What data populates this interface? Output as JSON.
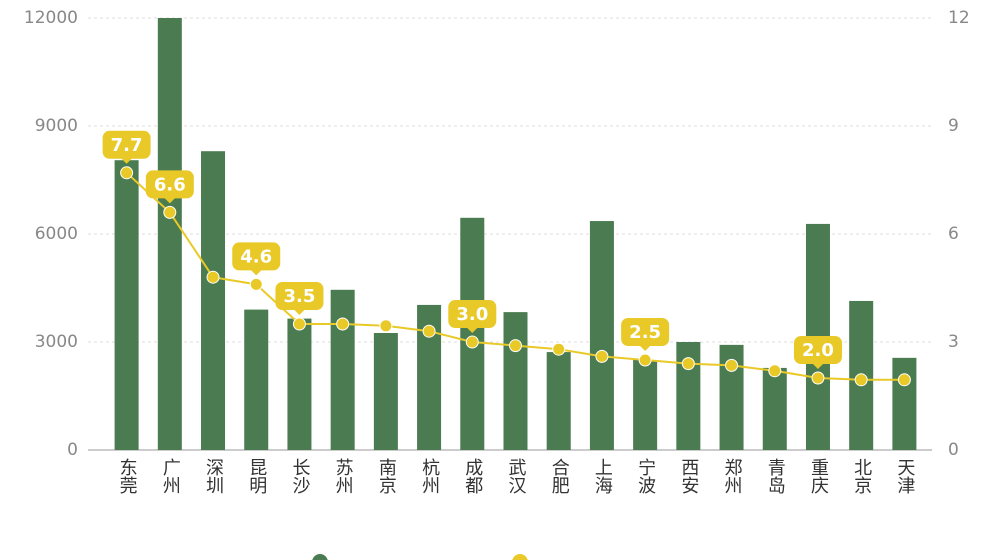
{
  "chart_data": {
    "type": "bar-line",
    "categories": [
      "东莞",
      "广州",
      "深圳",
      "昆明",
      "长沙",
      "苏州",
      "南京",
      "杭州",
      "成都",
      "武汉",
      "合肥",
      "上海",
      "宁波",
      "西安",
      "郑州",
      "青岛",
      "重庆",
      "北京",
      "天津"
    ],
    "series": [
      {
        "type": "bar",
        "color": "#4b7b51",
        "values": [
          8050,
          12000,
          8300,
          3900,
          3650,
          4450,
          3250,
          4030,
          6450,
          3830,
          2720,
          6360,
          2500,
          3000,
          2920,
          2280,
          6280,
          4140,
          2560
        ]
      },
      {
        "type": "line",
        "axis": "y2",
        "color": "#e9c928",
        "values": [
          7.7,
          6.6,
          4.8,
          4.6,
          3.5,
          3.5,
          3.45,
          3.3,
          3.0,
          2.9,
          2.8,
          2.6,
          2.5,
          2.4,
          2.35,
          2.2,
          2.0,
          1.95,
          1.95
        ],
        "value_labels": [
          "7.7",
          "6.6",
          null,
          "4.6",
          "3.5",
          null,
          null,
          null,
          "3.0",
          null,
          null,
          null,
          "2.5",
          null,
          null,
          null,
          "2.0",
          null,
          null
        ]
      }
    ],
    "ylim": [
      0,
      12000
    ],
    "yticks": [
      0,
      3000,
      6000,
      9000,
      12000
    ],
    "y2lim": [
      0,
      12
    ],
    "y2ticks": [
      0,
      3,
      6,
      9,
      12
    ],
    "grid": true
  }
}
